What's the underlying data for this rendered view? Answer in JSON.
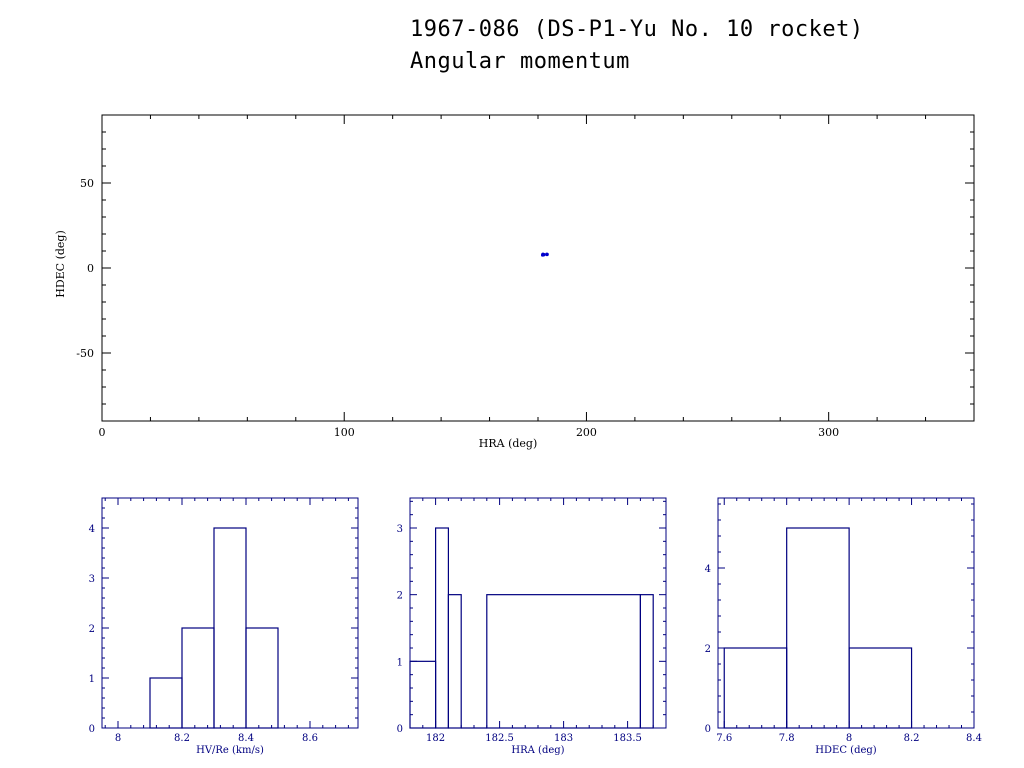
{
  "title": {
    "line1": "1967-086 (DS-P1-Yu No. 10 rocket)",
    "line2": "Angular momentum"
  },
  "colors": {
    "axes_main": "#000000",
    "data_main": "#0000cc",
    "hist": "#000080"
  },
  "chart_data": [
    {
      "type": "scatter",
      "xlabel": "HRA (deg)",
      "ylabel": "HDEC (deg)",
      "xlim": [
        0,
        360
      ],
      "ylim": [
        -90,
        90
      ],
      "x_ticks": [
        0,
        100,
        200,
        300
      ],
      "y_ticks": [
        -50,
        0,
        50
      ],
      "grid": false,
      "points": [
        {
          "x": 181.9,
          "y": 7.6
        },
        {
          "x": 182.1,
          "y": 7.8
        },
        {
          "x": 182.2,
          "y": 8.0
        },
        {
          "x": 182.4,
          "y": 7.9
        },
        {
          "x": 183.6,
          "y": 8.1
        },
        {
          "x": 183.7,
          "y": 7.9
        },
        {
          "x": 182.0,
          "y": 8.1
        },
        {
          "x": 182.3,
          "y": 7.7
        },
        {
          "x": 183.8,
          "y": 8.0
        }
      ]
    },
    {
      "type": "bar",
      "xlabel": "HV/Re (km/s)",
      "ylabel": "",
      "xlim": [
        7.95,
        8.75
      ],
      "ylim": [
        0,
        4.6
      ],
      "x_ticks": [
        "8",
        "8.2",
        "8.4",
        "8.6"
      ],
      "x_tick_values": [
        8.0,
        8.2,
        8.4,
        8.6
      ],
      "y_ticks": [
        "0",
        "1",
        "2",
        "3",
        "4"
      ],
      "y_tick_values": [
        0,
        1,
        2,
        3,
        4
      ],
      "bin_edges": [
        8.1,
        8.2,
        8.3,
        8.4,
        8.5
      ],
      "counts": [
        1,
        2,
        4,
        2
      ]
    },
    {
      "type": "bar",
      "xlabel": "HRA (deg)",
      "ylabel": "",
      "xlim": [
        181.8,
        183.8
      ],
      "ylim": [
        0,
        3.45
      ],
      "x_ticks": [
        "182",
        "182.5",
        "183",
        "183.5"
      ],
      "x_tick_values": [
        182.0,
        182.5,
        183.0,
        183.5
      ],
      "y_ticks": [
        "0",
        "1",
        "2",
        "3"
      ],
      "y_tick_values": [
        0,
        1,
        2,
        3
      ],
      "bin_edges": [
        181.8,
        182.0,
        182.1,
        182.2,
        182.4,
        183.6,
        183.7
      ],
      "counts": [
        1,
        3,
        2,
        0,
        2,
        2
      ]
    },
    {
      "type": "bar",
      "xlabel": "HDEC (deg)",
      "ylabel": "",
      "xlim": [
        7.58,
        8.4
      ],
      "ylim": [
        0,
        5.75
      ],
      "x_ticks": [
        "7.6",
        "7.8",
        "8",
        "8.2",
        "8.4"
      ],
      "x_tick_values": [
        7.6,
        7.8,
        8.0,
        8.2,
        8.4
      ],
      "y_ticks": [
        "0",
        "2",
        "4"
      ],
      "y_tick_values": [
        0,
        2,
        4
      ],
      "bin_edges": [
        7.6,
        7.8,
        8.0,
        8.2
      ],
      "counts": [
        2,
        5,
        2
      ]
    }
  ]
}
